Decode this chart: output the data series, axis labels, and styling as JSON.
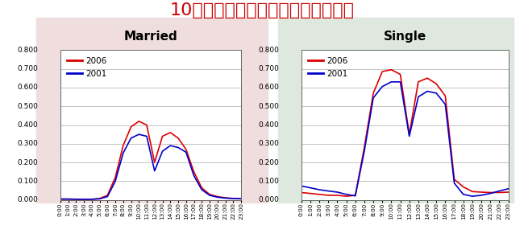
{
  "title": "10歳未満児の母親の時間帯別就業率",
  "title_color": "#cc0000",
  "title_fontsize": 16,
  "married_bg": "#f0dede",
  "single_bg": "#dfe8df",
  "subplot_titles": [
    "Married",
    "Single"
  ],
  "ylim": [
    0.0,
    0.8
  ],
  "yticks": [
    0.0,
    0.1,
    0.2,
    0.3,
    0.4,
    0.5,
    0.6,
    0.7,
    0.8
  ],
  "color_2006": "#dd0000",
  "color_2001": "#0000cc",
  "line_width": 1.2,
  "hours": [
    0,
    1,
    2,
    3,
    4,
    5,
    6,
    7,
    8,
    9,
    10,
    11,
    12,
    13,
    14,
    15,
    16,
    17,
    18,
    19,
    20,
    21,
    22,
    23
  ],
  "married_2006": [
    0.005,
    0.005,
    0.004,
    0.004,
    0.004,
    0.008,
    0.025,
    0.12,
    0.29,
    0.39,
    0.42,
    0.4,
    0.2,
    0.34,
    0.36,
    0.33,
    0.27,
    0.15,
    0.065,
    0.03,
    0.018,
    0.012,
    0.008,
    0.007
  ],
  "married_2001": [
    0.005,
    0.005,
    0.004,
    0.004,
    0.004,
    0.006,
    0.018,
    0.1,
    0.25,
    0.33,
    0.35,
    0.34,
    0.155,
    0.26,
    0.29,
    0.28,
    0.255,
    0.13,
    0.055,
    0.025,
    0.015,
    0.01,
    0.008,
    0.006
  ],
  "single_2006": [
    0.04,
    0.035,
    0.03,
    0.025,
    0.025,
    0.02,
    0.025,
    0.28,
    0.57,
    0.685,
    0.695,
    0.67,
    0.35,
    0.63,
    0.65,
    0.62,
    0.555,
    0.11,
    0.07,
    0.045,
    0.042,
    0.04,
    0.04,
    0.042
  ],
  "single_2001": [
    0.075,
    0.065,
    0.055,
    0.048,
    0.042,
    0.03,
    0.022,
    0.26,
    0.545,
    0.605,
    0.63,
    0.63,
    0.34,
    0.55,
    0.58,
    0.57,
    0.51,
    0.09,
    0.03,
    0.02,
    0.025,
    0.035,
    0.048,
    0.06
  ]
}
